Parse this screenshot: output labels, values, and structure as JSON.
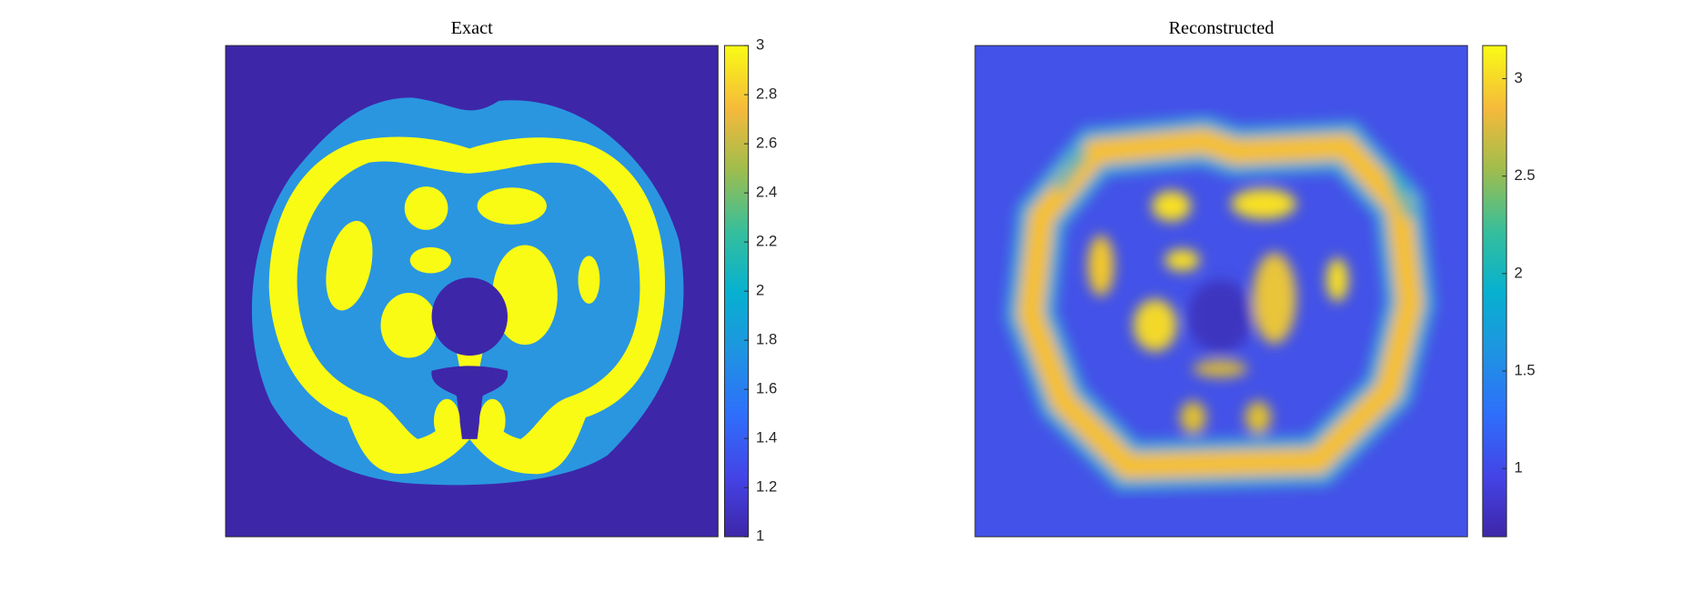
{
  "chart_data": [
    {
      "type": "heatmap",
      "title": "Exact",
      "clim": [
        1,
        3
      ],
      "cticks": [
        1,
        1.2,
        1.4,
        1.6,
        1.8,
        2,
        2.2,
        2.4,
        2.6,
        2.8,
        3
      ]
    },
    {
      "type": "heatmap",
      "title": "Reconstructed",
      "clim": [
        0.65,
        3.17
      ],
      "cticks": [
        1,
        1.5,
        2,
        2.5,
        3
      ]
    }
  ]
}
